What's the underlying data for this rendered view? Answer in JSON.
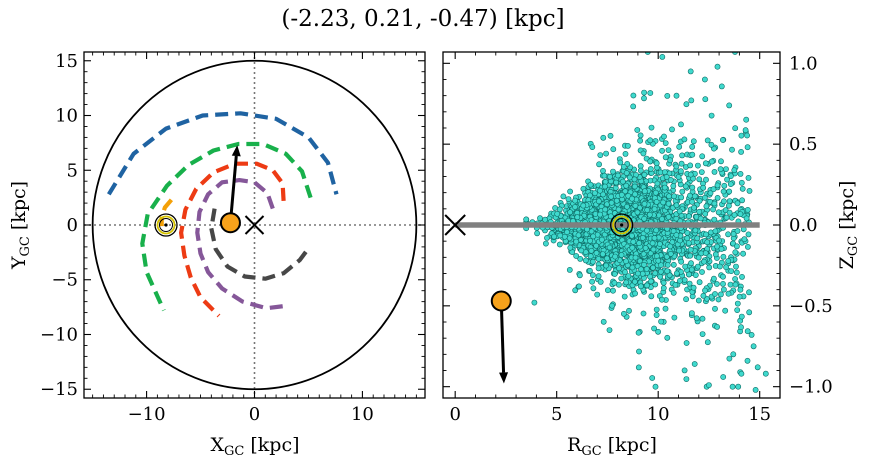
{
  "title": "(-2.23, 0.21, -0.47) [kpc]",
  "chart_data": [
    {
      "type": "scatter",
      "panel": "left",
      "xlabel": "X",
      "xlabel_sub": "GC",
      "xlabel_unit": " [kpc]",
      "ylabel": "Y",
      "ylabel_sub": "GC",
      "ylabel_unit": " [kpc]",
      "xlim": [
        -15.8,
        15.8
      ],
      "ylim": [
        -15.8,
        15.8
      ],
      "xticks": [
        -10,
        0,
        10
      ],
      "xtick_labels": [
        "−10",
        "0",
        "10"
      ],
      "yticks": [
        -15,
        -10,
        -5,
        0,
        5,
        10,
        15
      ],
      "ytick_labels": [
        "−15",
        "−10",
        "−5",
        "0",
        "5",
        "10",
        "15"
      ],
      "boundary_circle_radius": 15,
      "center_marker": {
        "x": 0,
        "y": 0,
        "symbol": "x"
      },
      "sun": {
        "x": -8.2,
        "y": 0
      },
      "object": {
        "x": -2.23,
        "y": 0.21
      },
      "velocity_arrow": {
        "from": [
          -2.23,
          0.21
        ],
        "to": [
          -1.6,
          7.3
        ]
      },
      "spiral_arms": [
        {
          "color": "#1f63a2",
          "points": [
            [
              -13.5,
              2.8
            ],
            [
              -11.2,
              6.5
            ],
            [
              -8.2,
              8.8
            ],
            [
              -4.8,
              10
            ],
            [
              -1.3,
              10.2
            ],
            [
              2,
              9.7
            ],
            [
              5,
              8
            ],
            [
              6.8,
              5.7
            ],
            [
              7.6,
              2.8
            ]
          ]
        },
        {
          "color": "#18b04b",
          "points": [
            [
              5.2,
              2.5
            ],
            [
              4.4,
              4.9
            ],
            [
              2.9,
              6.5
            ],
            [
              0.8,
              7.4
            ],
            [
              -1.5,
              7.4
            ],
            [
              -3.8,
              6.8
            ],
            [
              -6.1,
              5.5
            ],
            [
              -8.1,
              3.6
            ],
            [
              -9.9,
              1
            ],
            [
              -10.4,
              -1.7
            ],
            [
              -10,
              -4.3
            ],
            [
              -9,
              -6.5
            ],
            [
              -8.4,
              -7.8
            ]
          ]
        },
        {
          "color": "#f4a007",
          "points": [
            [
              -7.7,
              2.3
            ],
            [
              -8.3,
              1.6
            ],
            [
              -8.6,
              0.7
            ],
            [
              -8.6,
              -0.1
            ]
          ]
        },
        {
          "color": "#ed3b14",
          "points": [
            [
              2.7,
              2.2
            ],
            [
              2.6,
              3.8
            ],
            [
              1.7,
              5
            ],
            [
              0.2,
              5.6
            ],
            [
              -1.8,
              5.6
            ],
            [
              -3.8,
              4.8
            ],
            [
              -5.4,
              3.3
            ],
            [
              -6.4,
              1.4
            ],
            [
              -6.8,
              -0.7
            ],
            [
              -6.5,
              -2.8
            ],
            [
              -5.9,
              -4.8
            ],
            [
              -5,
              -6.6
            ],
            [
              -3.3,
              -8.3
            ]
          ]
        },
        {
          "color": "#855799",
          "points": [
            [
              1.7,
              1.5
            ],
            [
              1.2,
              2.9
            ],
            [
              0,
              3.9
            ],
            [
              -1.4,
              4.1
            ],
            [
              -3,
              3.9
            ],
            [
              -4.3,
              2.8
            ],
            [
              -5.1,
              1.2
            ],
            [
              -5.3,
              -0.7
            ],
            [
              -5,
              -2.6
            ],
            [
              -4.3,
              -4.3
            ],
            [
              -3,
              -5.8
            ],
            [
              -1.1,
              -7
            ],
            [
              1.1,
              -7.6
            ],
            [
              2.8,
              -7.4
            ]
          ]
        },
        {
          "color": "#474747",
          "points": [
            [
              -3.7,
              1.5
            ],
            [
              -4,
              -0.3
            ],
            [
              -3.6,
              -2.2
            ],
            [
              -2.5,
              -3.8
            ],
            [
              -0.9,
              -4.7
            ],
            [
              1,
              -4.9
            ],
            [
              2.7,
              -4.4
            ],
            [
              4.2,
              -3.2
            ],
            [
              4.8,
              -2.4
            ]
          ]
        }
      ]
    },
    {
      "type": "scatter",
      "panel": "right",
      "xlabel": "R",
      "xlabel_sub": "GC",
      "xlabel_unit": " [kpc]",
      "ylabel": "Z",
      "ylabel_sub": "GC",
      "ylabel_unit": " [kpc]",
      "ylabel_side": "right",
      "xlim": [
        -0.6,
        16
      ],
      "ylim": [
        -1.07,
        1.07
      ],
      "xticks": [
        0,
        5,
        10,
        15
      ],
      "xtick_labels": [
        "0",
        "5",
        "10",
        "15"
      ],
      "yticks": [
        -1.0,
        -0.5,
        0.0,
        0.5,
        1.0
      ],
      "ytick_labels": [
        "−1.0",
        "−0.5",
        "0.0",
        "0.5",
        "1.0"
      ],
      "disk_plane": {
        "r_from": 0,
        "r_to": 15,
        "z": 0,
        "color": "#808080"
      },
      "center_marker": {
        "r": 0,
        "z": 0,
        "symbol": "x"
      },
      "sun": {
        "r": 8.2,
        "z": 0
      },
      "object": {
        "r": 2.27,
        "z": -0.47
      },
      "velocity_arrow": {
        "from": [
          2.27,
          -0.47
        ],
        "to": [
          2.4,
          -0.98
        ]
      },
      "stars": {
        "description": "Dense cloud of field stars centred on the Sun, spreading in |Z| with radius",
        "count": 3000,
        "r_range": [
          3.5,
          15.5
        ],
        "z_range": [
          -1.0,
          1.07
        ],
        "fill": "#3fd9cd",
        "edge": "#0d6c66"
      },
      "outlier_stars": [
        [
          10.2,
          1.04
        ],
        [
          11.6,
          0.95
        ],
        [
          12.3,
          0.9
        ],
        [
          13.5,
          0.74
        ],
        [
          10.9,
          0.8
        ],
        [
          3.9,
          -0.48
        ],
        [
          7.6,
          -0.65
        ],
        [
          9.8,
          -0.64
        ],
        [
          13.3,
          -0.53
        ],
        [
          14.6,
          -0.68
        ],
        [
          14.7,
          -0.75
        ],
        [
          14.4,
          -0.84
        ],
        [
          15.3,
          -0.92
        ],
        [
          14.8,
          -1.02
        ],
        [
          11.8,
          -0.86
        ],
        [
          13.2,
          -0.94
        ],
        [
          12.5,
          -0.99
        ],
        [
          14.1,
          -0.92
        ],
        [
          11.4,
          -0.73
        ],
        [
          12.9,
          -0.63
        ],
        [
          6.1,
          -0.38
        ],
        [
          9.0,
          -0.3
        ],
        [
          14.9,
          -0.88
        ],
        [
          13.7,
          -0.8
        ]
      ]
    }
  ]
}
